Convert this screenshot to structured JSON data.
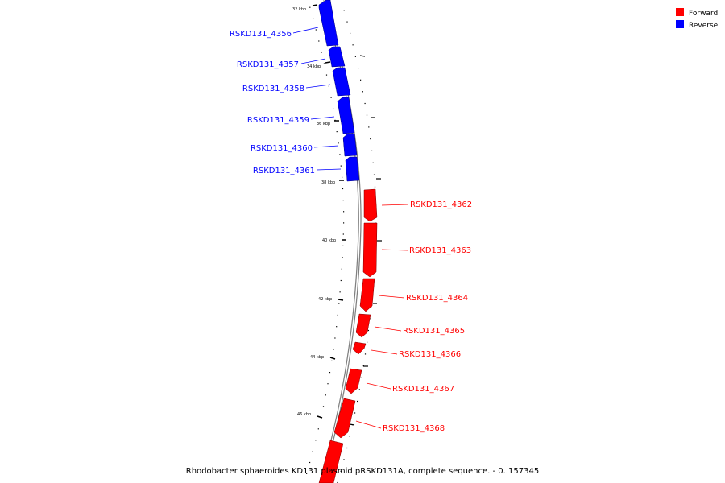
{
  "caption": "Rhodobacter sphaeroides KD131 plasmid pRSKD131A, complete sequence. - 0..157345",
  "legend": [
    {
      "label": "Forward",
      "color": "#ff0000"
    },
    {
      "label": "Reverse",
      "color": "#0000ff"
    }
  ],
  "colors": {
    "forward": "#ff0000",
    "reverse": "#0000ff",
    "backbone": "#808080"
  },
  "ticks": [
    "32 kbp",
    "34 kbp",
    "36 kbp",
    "38 kbp",
    "40 kbp",
    "42 kbp",
    "44 kbp",
    "46 kbp"
  ],
  "genes": [
    {
      "name": "RSKD131_4356",
      "strand": "reverse"
    },
    {
      "name": "RSKD131_4357",
      "strand": "reverse"
    },
    {
      "name": "RSKD131_4358",
      "strand": "reverse"
    },
    {
      "name": "RSKD131_4359",
      "strand": "reverse"
    },
    {
      "name": "RSKD131_4360",
      "strand": "reverse"
    },
    {
      "name": "RSKD131_4361",
      "strand": "reverse"
    },
    {
      "name": "RSKD131_4362",
      "strand": "forward"
    },
    {
      "name": "RSKD131_4363",
      "strand": "forward"
    },
    {
      "name": "RSKD131_4364",
      "strand": "forward"
    },
    {
      "name": "RSKD131_4365",
      "strand": "forward"
    },
    {
      "name": "RSKD131_4366",
      "strand": "forward"
    },
    {
      "name": "RSKD131_4367",
      "strand": "forward"
    },
    {
      "name": "RSKD131_4368",
      "strand": "forward"
    }
  ]
}
